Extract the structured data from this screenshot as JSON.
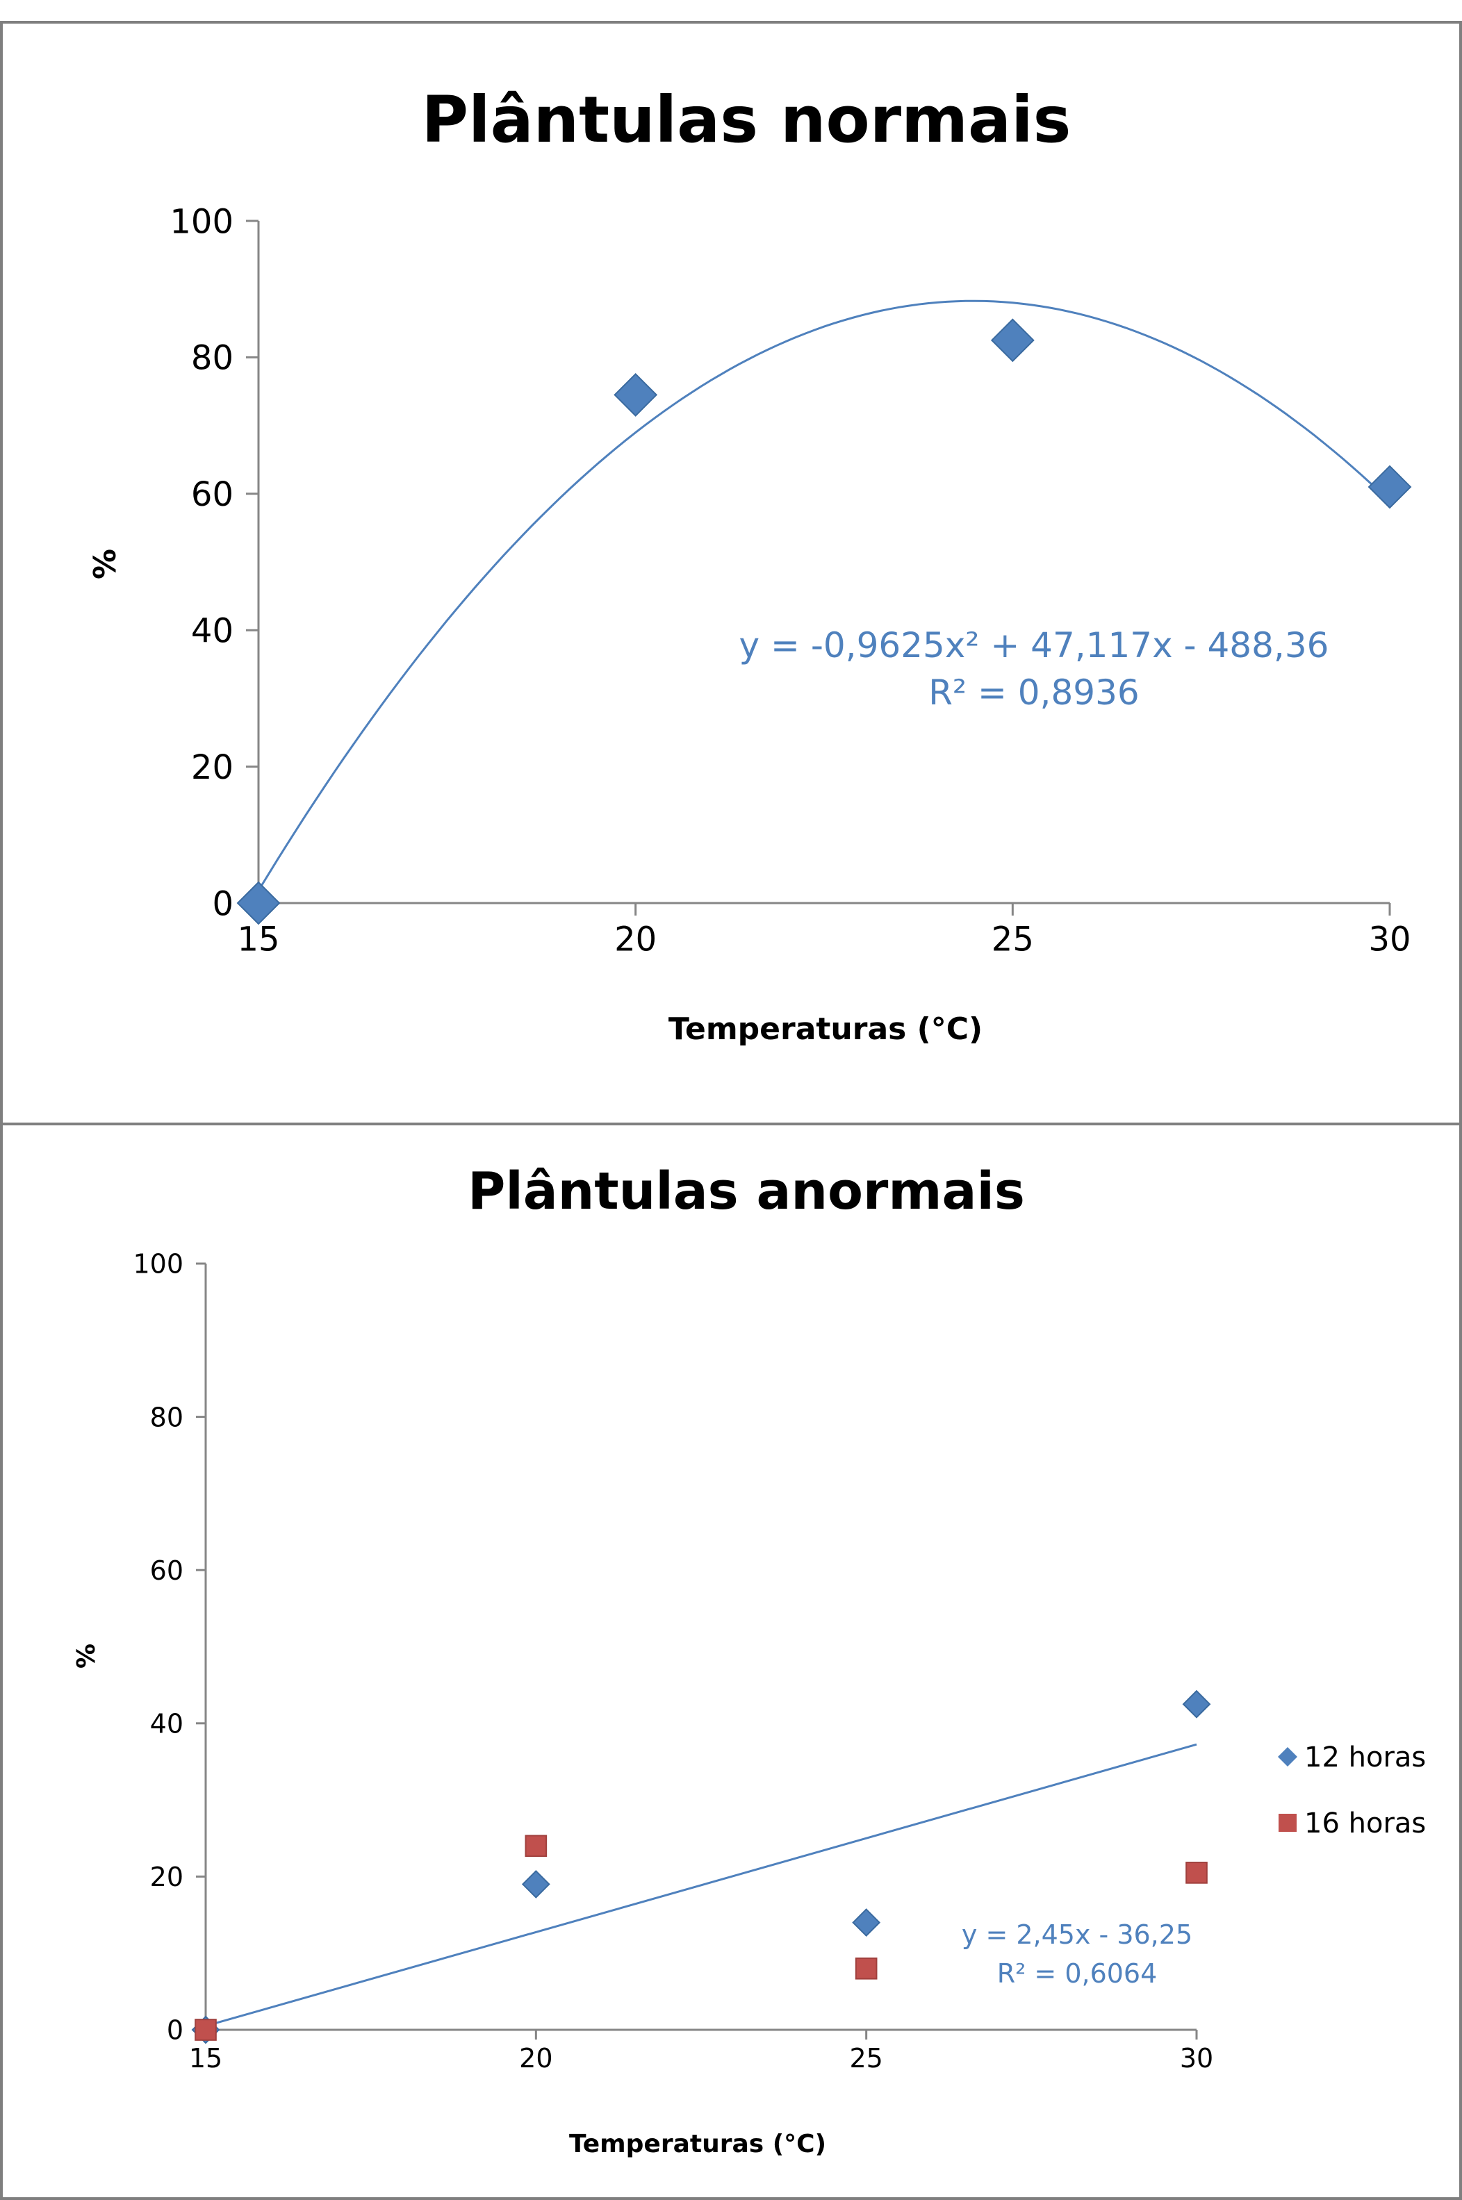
{
  "chart_data": [
    {
      "type": "scatter",
      "title": "Plântulas normais",
      "xlabel": "Temperaturas (°C)",
      "ylabel": "%",
      "xlim": [
        15,
        30
      ],
      "ylim": [
        0,
        100
      ],
      "xticks": [
        "15",
        "20",
        "25",
        "30"
      ],
      "yticks": [
        "0",
        "20",
        "40",
        "60",
        "80",
        "100"
      ],
      "grid": false,
      "legend": "none",
      "series": [
        {
          "x": [
            15,
            20,
            25,
            30
          ],
          "y": [
            0,
            74.5,
            82.5,
            61
          ],
          "marker": "diamond",
          "color": "#4f81bd"
        }
      ],
      "trendline": {
        "type": "polynomial",
        "coefficients": [
          -0.9625,
          47.117,
          -488.36
        ],
        "equation": "y = -0,9625x² + 47,117x - 488,36",
        "r2_label": "R² = 0,8936",
        "color": "#4f81bd"
      }
    },
    {
      "type": "scatter",
      "title": "Plântulas anormais",
      "xlabel": "Temperaturas (°C)",
      "ylabel": "%",
      "xlim": [
        15,
        30
      ],
      "ylim": [
        0,
        100
      ],
      "xticks": [
        "15",
        "20",
        "25",
        "30"
      ],
      "yticks": [
        "0",
        "20",
        "40",
        "60",
        "80",
        "100"
      ],
      "grid": false,
      "legend": "right",
      "series": [
        {
          "name": "12 horas",
          "x": [
            15,
            20,
            25,
            30
          ],
          "y": [
            0,
            19,
            14,
            42.5
          ],
          "marker": "diamond",
          "color": "#4f81bd"
        },
        {
          "name": "16 horas",
          "x": [
            15,
            20,
            25,
            30
          ],
          "y": [
            0,
            24,
            8,
            20.5
          ],
          "marker": "square",
          "color": "#c0504d"
        }
      ],
      "trendline": {
        "type": "linear",
        "coefficients": [
          2.45,
          -36.25
        ],
        "equation": "y = 2,45x - 36,25",
        "r2_label": "R² = 0,6064",
        "color": "#4f81bd"
      }
    }
  ]
}
